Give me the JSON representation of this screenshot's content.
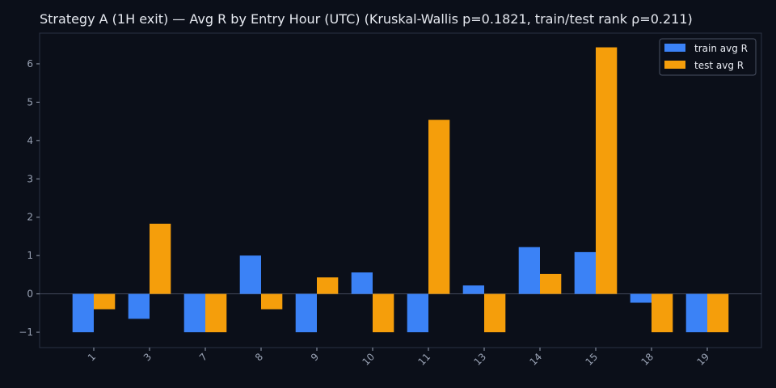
{
  "title": "Strategy A (1H exit) — Avg R by Entry Hour (UTC) (Kruskal-Wallis p=0.1821, train/test rank ρ=0.211)",
  "colors": {
    "background": "#0b0f19",
    "axes_border": "#2a3142",
    "zero_line": "#4a5163",
    "tick_text": "#9aa3b5",
    "train": "#3b82f6",
    "test": "#f59e0b"
  },
  "chart_data": {
    "type": "bar",
    "title": "Strategy A (1H exit) — Avg R by Entry Hour (UTC) (Kruskal-Wallis p=0.1821, train/test rank ρ=0.211)",
    "xlabel": "",
    "ylabel": "",
    "categories": [
      "1",
      "3",
      "7",
      "8",
      "9",
      "10",
      "11",
      "13",
      "14",
      "15",
      "18",
      "19"
    ],
    "series": [
      {
        "name": "train avg R",
        "color": "#3b82f6",
        "values": [
          -1.0,
          -0.65,
          -1.0,
          1.0,
          -1.0,
          0.56,
          -1.0,
          0.22,
          1.22,
          1.09,
          -0.23,
          -1.0
        ]
      },
      {
        "name": "test avg R",
        "color": "#f59e0b",
        "values": [
          -0.4,
          1.83,
          -1.0,
          -0.4,
          0.43,
          -1.0,
          4.54,
          -1.0,
          0.52,
          6.43,
          -1.0,
          -1.0
        ]
      }
    ],
    "ylim": [
      -1.4,
      6.8
    ],
    "yticks": [
      -1,
      0,
      1,
      2,
      3,
      4,
      5,
      6
    ],
    "ytick_labels": [
      "−1",
      "0",
      "1",
      "2",
      "3",
      "4",
      "5",
      "6"
    ],
    "grid": false,
    "legend_position": "top-right"
  }
}
